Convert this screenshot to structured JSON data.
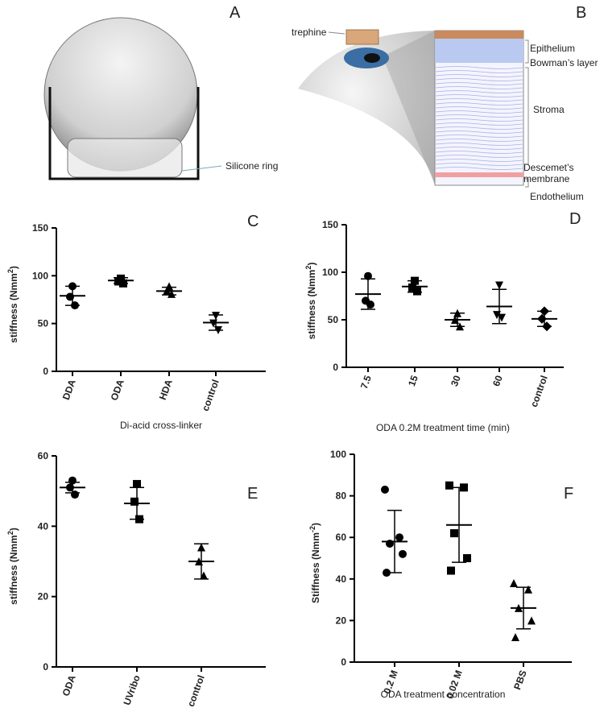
{
  "chart_data": [
    {
      "type": "dot",
      "panel": "C",
      "y_label": "stiffness (Nmm",
      "y_label_sup": "2",
      "y_label_end": ")",
      "x_label": "Di-acid cross-linker",
      "categories": [
        "DDA",
        "ODA",
        "HDA",
        "control"
      ],
      "markers": [
        "circle",
        "square",
        "triangle-up",
        "triangle-down"
      ],
      "color": "#000000",
      "points": [
        [
          89,
          78,
          69
        ],
        [
          97,
          94,
          92
        ],
        [
          89,
          84,
          81
        ],
        [
          58,
          50,
          43
        ]
      ],
      "mean": [
        79,
        95,
        84,
        51
      ],
      "sd": [
        10,
        3,
        4,
        8
      ],
      "ylim": [
        0,
        150
      ],
      "yticks": [
        0,
        50,
        100,
        150
      ]
    },
    {
      "type": "dot",
      "panel": "D",
      "y_label": "stiffness (Nmm",
      "y_label_sup": "2",
      "y_label_end": ")",
      "x_label": "ODA 0.2M treatment time (min)",
      "categories": [
        "7.5",
        "15",
        "30",
        "60",
        "control"
      ],
      "markers": [
        "circle",
        "square",
        "triangle-up",
        "triangle-down",
        "diamond"
      ],
      "color": "#000000",
      "points": [
        [
          96,
          70,
          66
        ],
        [
          91,
          84,
          80
        ],
        [
          57,
          50,
          43
        ],
        [
          86,
          55,
          52
        ],
        [
          59,
          51,
          43
        ]
      ],
      "mean": [
        77,
        85,
        50,
        64,
        51
      ],
      "sd": [
        16,
        6,
        7,
        18,
        8
      ],
      "ylim": [
        0,
        150
      ],
      "yticks": [
        0,
        50,
        100,
        150
      ]
    },
    {
      "type": "dot",
      "panel": "E",
      "y_label": "stiffness (Nmm",
      "y_label_sup": "2",
      "y_label_end": ")",
      "categories": [
        "ODA",
        "UVribo",
        "control"
      ],
      "markers": [
        "circle",
        "square",
        "triangle-up"
      ],
      "color": "#000000",
      "points": [
        [
          53,
          51,
          49
        ],
        [
          52,
          47,
          42
        ],
        [
          34,
          30,
          26
        ]
      ],
      "mean": [
        51,
        46.5,
        30
      ],
      "sd": [
        1.5,
        4.5,
        5
      ],
      "ylim": [
        0,
        60
      ],
      "yticks": [
        0,
        20,
        40,
        60
      ]
    },
    {
      "type": "dot",
      "panel": "F",
      "y_label": "Stiffness (Nmm",
      "y_label_sup": "-2",
      "y_label_end": ")",
      "x_label": "ODA treatment concentration",
      "categories": [
        "0.2 M",
        "0.02 M",
        "PBS"
      ],
      "markers": [
        "circle",
        "square",
        "triangle-up"
      ],
      "color": "#000000",
      "points": [
        [
          83,
          60,
          57,
          52,
          43
        ],
        [
          85,
          84,
          62,
          50,
          44
        ],
        [
          38,
          35,
          26,
          20,
          12
        ]
      ],
      "mean": [
        58,
        66,
        26
      ],
      "sd": [
        15,
        18,
        10
      ],
      "ylim": [
        0,
        100
      ],
      "yticks": [
        0,
        20,
        40,
        60,
        80,
        100
      ]
    }
  ],
  "diagrams": {
    "a": {
      "panel": "A",
      "label": "Silicone ring"
    },
    "b": {
      "panel": "B",
      "trephine": "trephine",
      "layers": [
        "Epithelium",
        "Bowman’s layer",
        "Stroma",
        "Descemet’s",
        "membrane",
        "Endothelium"
      ]
    }
  }
}
